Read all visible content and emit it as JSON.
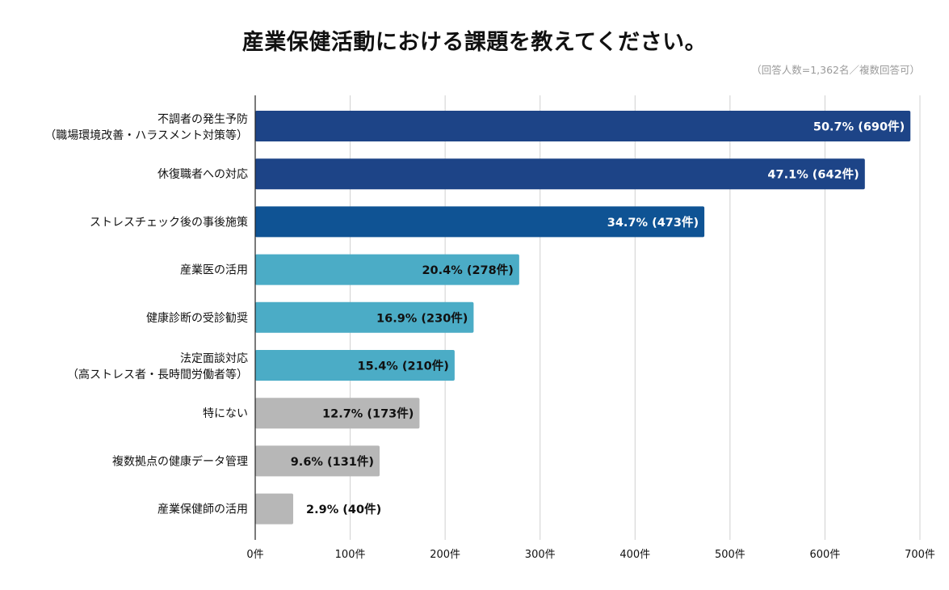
{
  "chart_data": {
    "type": "bar",
    "orientation": "horizontal",
    "title": "産業保健活動における課題を教えてください。",
    "subtitle": "（回答人数=1,362名／複数回答可）",
    "xlabel": "",
    "ylabel": "",
    "xlim": [
      0,
      700
    ],
    "x_ticks": [
      0,
      100,
      200,
      300,
      400,
      500,
      600,
      700
    ],
    "x_tick_suffix": "件",
    "grid": "vertical",
    "categories": [
      [
        "不調者の発生予防",
        "（職場環境改善・ハラスメント対策等）"
      ],
      [
        "休復職者への対応"
      ],
      [
        "ストレスチェック後の事後施策"
      ],
      [
        "産業医の活用"
      ],
      [
        "健康診断の受診勧奨"
      ],
      [
        "法定面談対応",
        "（高ストレス者・長時間労働者等）"
      ],
      [
        "特にない"
      ],
      [
        "複数拠点の健康データ管理"
      ],
      [
        "産業保健師の活用"
      ]
    ],
    "values": [
      690,
      642,
      473,
      278,
      230,
      210,
      173,
      131,
      40
    ],
    "percents": [
      "50.7%",
      "47.1%",
      "34.7%",
      "20.4%",
      "16.9%",
      "15.4%",
      "12.7%",
      "9.6%",
      "2.9%"
    ],
    "unit": "件",
    "colors": [
      "#1d4487",
      "#1d4487",
      "#0f5394",
      "#4bacc6",
      "#4bacc6",
      "#4bacc6",
      "#b7b7b7",
      "#b7b7b7",
      "#b7b7b7"
    ],
    "label_colors": [
      "#ffffff",
      "#ffffff",
      "#ffffff",
      "#111111",
      "#111111",
      "#111111",
      "#111111",
      "#111111",
      "#111111"
    ]
  }
}
